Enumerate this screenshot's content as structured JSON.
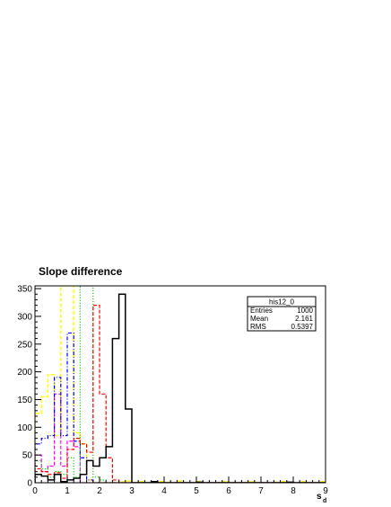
{
  "chart_data": {
    "type": "histogram",
    "title": "Slope difference",
    "xlabel": "s",
    "xlabel_subscript": "d",
    "ylabel": "",
    "xlim": [
      0,
      9
    ],
    "ylim": [
      0,
      355
    ],
    "bin_width": 0.2,
    "x_ticks": [
      0,
      1,
      2,
      3,
      4,
      5,
      6,
      7,
      8,
      9
    ],
    "y_ticks": [
      0,
      50,
      100,
      150,
      200,
      250,
      300,
      350
    ],
    "grid": false,
    "stats_box": {
      "name": "his12_0",
      "rows": [
        {
          "label": "Entries",
          "value": "1000"
        },
        {
          "label": "Mean",
          "value": "2.161"
        },
        {
          "label": "RMS",
          "value": "0.5397"
        }
      ]
    },
    "series": [
      {
        "color": "#000000",
        "style": "solid",
        "width": 1.5,
        "values": [
          15,
          12,
          5,
          15,
          2,
          5,
          8,
          15,
          40,
          30,
          45,
          65,
          260,
          340,
          133,
          0,
          0,
          0,
          2,
          0,
          0,
          0,
          0,
          0,
          0,
          1,
          0,
          0,
          0,
          0,
          0,
          0,
          0,
          0,
          0,
          0,
          0,
          0,
          0,
          1,
          0,
          0,
          0,
          0,
          0
        ]
      },
      {
        "color": "#ff0000",
        "style": "dashed",
        "width": 1.2,
        "values": [
          25,
          20,
          15,
          18,
          8,
          60,
          80,
          70,
          55,
          320,
          160,
          45,
          5,
          0,
          0,
          0,
          0,
          0,
          0,
          0,
          0,
          0,
          0,
          0,
          0,
          0,
          0,
          0,
          0,
          0,
          0,
          0,
          0,
          0,
          0,
          0,
          0,
          0,
          0,
          0,
          0,
          0,
          0,
          0,
          0
        ]
      },
      {
        "color": "#00cc00",
        "style": "dotted",
        "width": 1.2,
        "values": [
          40,
          25,
          10,
          20,
          15,
          45,
          10,
          355,
          355,
          10,
          5,
          0,
          0,
          0,
          0,
          0,
          0,
          0,
          0,
          0,
          0,
          0,
          0,
          0,
          0,
          0,
          0,
          0,
          0,
          0,
          0,
          0,
          0,
          0,
          0,
          0,
          0,
          0,
          0,
          0,
          0,
          0,
          0,
          0,
          0
        ]
      },
      {
        "color": "#0000ff",
        "style": "dashdot",
        "width": 1.2,
        "values": [
          70,
          80,
          85,
          190,
          85,
          270,
          75,
          45,
          5,
          0,
          0,
          0,
          0,
          0,
          0,
          0,
          0,
          0,
          0,
          0,
          0,
          0,
          0,
          0,
          0,
          0,
          0,
          0,
          0,
          0,
          0,
          0,
          0,
          0,
          0,
          0,
          0,
          0,
          0,
          0,
          0,
          0,
          0,
          0,
          0
        ]
      },
      {
        "color": "#ff00ff",
        "style": "dashed",
        "width": 1.2,
        "values": [
          50,
          20,
          30,
          160,
          30,
          75,
          65,
          0,
          0,
          0,
          0,
          0,
          0,
          0,
          0,
          0,
          0,
          0,
          0,
          0,
          0,
          0,
          0,
          0,
          0,
          0,
          0,
          0,
          0,
          0,
          0,
          0,
          0,
          0,
          0,
          0,
          0,
          0,
          0,
          0,
          0,
          0,
          0,
          0,
          0
        ]
      },
      {
        "color": "#ffff00",
        "style": "dashed",
        "width": 1.5,
        "values": [
          125,
          155,
          195,
          85,
          355,
          355,
          90,
          70,
          5,
          0,
          0,
          0,
          0,
          2,
          3,
          0,
          2,
          0,
          0,
          2,
          0,
          0,
          3,
          0,
          0,
          2,
          0,
          0,
          0,
          2,
          0,
          0,
          0,
          2,
          0,
          0,
          0,
          0,
          2,
          0,
          0,
          2,
          0,
          0,
          2
        ]
      }
    ]
  }
}
